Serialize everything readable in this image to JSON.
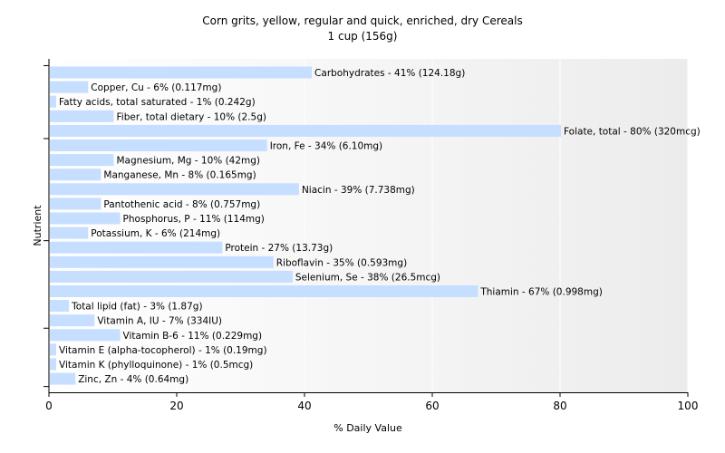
{
  "chart_data": {
    "type": "bar",
    "orientation": "horizontal",
    "title": "Corn grits, yellow, regular and quick, enriched, dry Cereals",
    "subtitle": "1 cup (156g)",
    "xlabel": "% Daily Value",
    "ylabel": "Nutrient",
    "xlim": [
      0,
      100
    ],
    "xticks": [
      "0",
      "20",
      "40",
      "60",
      "80",
      "100"
    ],
    "grid": true,
    "bar_color": "#c6deff",
    "categories": [
      "Carbohydrates",
      "Copper, Cu",
      "Fatty acids, total saturated",
      "Fiber, total dietary",
      "Folate, total",
      "Iron, Fe",
      "Magnesium, Mg",
      "Manganese, Mn",
      "Niacin",
      "Pantothenic acid",
      "Phosphorus, P",
      "Potassium, K",
      "Protein",
      "Riboflavin",
      "Selenium, Se",
      "Thiamin",
      "Total lipid (fat)",
      "Vitamin A, IU",
      "Vitamin B-6",
      "Vitamin E (alpha-tocopherol)",
      "Vitamin K (phylloquinone)",
      "Zinc, Zn"
    ],
    "values": [
      41,
      6,
      1,
      10,
      80,
      34,
      10,
      8,
      39,
      8,
      11,
      6,
      27,
      35,
      38,
      67,
      3,
      7,
      11,
      1,
      1,
      4
    ],
    "labels": [
      "Carbohydrates - 41% (124.18g)",
      "Copper, Cu - 6% (0.117mg)",
      "Fatty acids, total saturated - 1% (0.242g)",
      "Fiber, total dietary - 10% (2.5g)",
      "Folate, total - 80% (320mcg)",
      "Iron, Fe - 34% (6.10mg)",
      "Magnesium, Mg - 10% (42mg)",
      "Manganese, Mn - 8% (0.165mg)",
      "Niacin - 39% (7.738mg)",
      "Pantothenic acid - 8% (0.757mg)",
      "Phosphorus, P - 11% (114mg)",
      "Potassium, K - 6% (214mg)",
      "Protein - 27% (13.73g)",
      "Riboflavin - 35% (0.593mg)",
      "Selenium, Se - 38% (26.5mcg)",
      "Thiamin - 67% (0.998mg)",
      "Total lipid (fat) - 3% (1.87g)",
      "Vitamin A, IU - 7% (334IU)",
      "Vitamin B-6 - 11% (0.229mg)",
      "Vitamin E (alpha-tocopherol) - 1% (0.19mg)",
      "Vitamin K (phylloquinone) - 1% (0.5mcg)",
      "Zinc, Zn - 4% (0.64mg)"
    ]
  }
}
